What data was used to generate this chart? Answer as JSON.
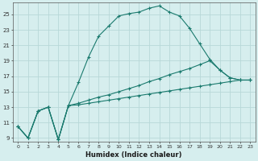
{
  "xlabel": "Humidex (Indice chaleur)",
  "bg_color": "#d6eeee",
  "grid_color": "#b8d8d8",
  "line_color": "#1a7a6e",
  "xlim": [
    -0.5,
    23.5
  ],
  "ylim": [
    8.5,
    26.5
  ],
  "xticks": [
    0,
    1,
    2,
    3,
    4,
    5,
    6,
    7,
    8,
    9,
    10,
    11,
    12,
    13,
    14,
    15,
    16,
    17,
    18,
    19,
    20,
    21,
    22,
    23
  ],
  "yticks": [
    9,
    11,
    13,
    15,
    17,
    19,
    21,
    23,
    25
  ],
  "series": [
    {
      "x": [
        0,
        1,
        2,
        3,
        4,
        5,
        6,
        7,
        8,
        9,
        10,
        11,
        12,
        13,
        14,
        15,
        16,
        17,
        18,
        19,
        20,
        21,
        22,
        23
      ],
      "y": [
        10.5,
        9.0,
        12.5,
        13.0,
        8.8,
        13.2,
        16.2,
        19.5,
        22.2,
        23.5,
        24.8,
        25.1,
        25.3,
        25.8,
        26.1,
        25.3,
        24.8,
        23.2,
        21.2,
        19.2,
        17.8,
        16.8,
        16.5,
        16.5
      ]
    },
    {
      "x": [
        0,
        1,
        2,
        3,
        4,
        5,
        6,
        7,
        8,
        9,
        10,
        11,
        12,
        13,
        14,
        15,
        16,
        17,
        18,
        19,
        20,
        21,
        22,
        23
      ],
      "y": [
        10.5,
        9.0,
        12.5,
        13.0,
        8.8,
        13.2,
        13.5,
        13.9,
        14.3,
        14.6,
        15.0,
        15.4,
        15.8,
        16.3,
        16.7,
        17.2,
        17.6,
        18.0,
        18.5,
        19.0,
        17.8,
        16.8,
        16.5,
        16.5
      ]
    },
    {
      "x": [
        0,
        1,
        2,
        3,
        4,
        5,
        6,
        7,
        8,
        9,
        10,
        11,
        12,
        13,
        14,
        15,
        16,
        17,
        18,
        19,
        20,
        21,
        22,
        23
      ],
      "y": [
        10.5,
        9.0,
        12.5,
        13.0,
        8.8,
        13.2,
        13.3,
        13.5,
        13.7,
        13.9,
        14.1,
        14.3,
        14.5,
        14.7,
        14.9,
        15.1,
        15.3,
        15.5,
        15.7,
        15.9,
        16.1,
        16.3,
        16.5,
        16.5
      ]
    }
  ]
}
